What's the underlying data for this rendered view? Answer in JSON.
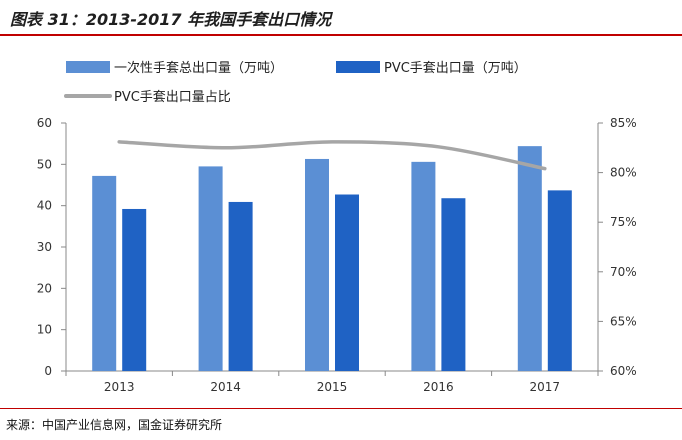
{
  "page": {
    "title": "图表 31：2013-2017 年我国手套出口情况",
    "source": "来源：中国产业信息网，国金证券研究所"
  },
  "chart_data": {
    "type": "bar",
    "categories": [
      "2013",
      "2014",
      "2015",
      "2016",
      "2017"
    ],
    "series": [
      {
        "name": "一次性手套总出口量（万吨）",
        "kind": "bar",
        "axis": "left",
        "color": "#5B8FD4",
        "values": [
          47.2,
          49.5,
          51.3,
          50.6,
          54.4
        ]
      },
      {
        "name": "PVC手套出口量（万吨）",
        "kind": "bar",
        "axis": "left",
        "color": "#1F62C4",
        "values": [
          39.2,
          40.9,
          42.7,
          41.8,
          43.7
        ]
      },
      {
        "name": "PVC手套出口量占比",
        "kind": "line",
        "axis": "right",
        "color": "#A6A6A6",
        "values": [
          83.1,
          82.5,
          83.1,
          82.6,
          80.4
        ]
      }
    ],
    "ylim_left": [
      0,
      60
    ],
    "yticks_left": [
      "0",
      "10",
      "20",
      "30",
      "40",
      "50",
      "60"
    ],
    "ylim_right": [
      60,
      85
    ],
    "yticks_right": [
      "60%",
      "65%",
      "70%",
      "75%",
      "80%",
      "85%"
    ],
    "legend_position": "top",
    "grid": false
  }
}
